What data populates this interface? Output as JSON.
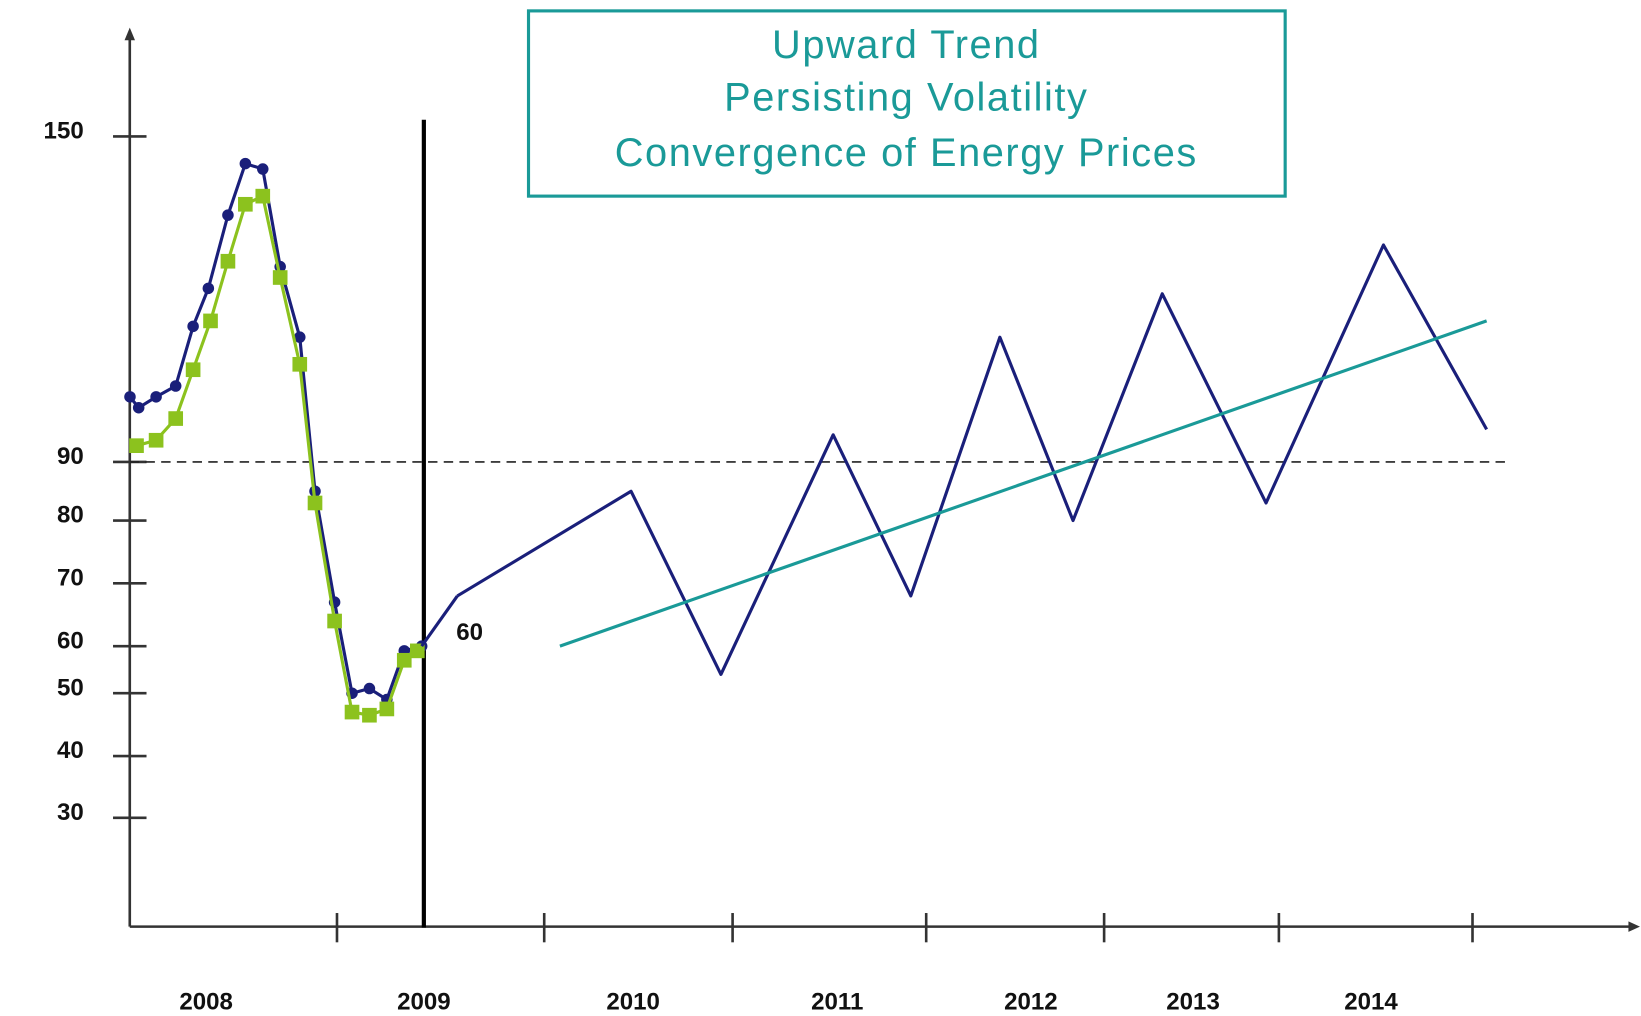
{
  "chart_data": {
    "type": "line",
    "annotation_lines": [
      "Upward Trend",
      "Persisting Volatility",
      "Convergence of Energy Prices"
    ],
    "categories": [
      "2008",
      "2009",
      "2010",
      "2011",
      "2012",
      "2013",
      "2014"
    ],
    "yticks": [
      30,
      40,
      50,
      60,
      70,
      80,
      90,
      150
    ],
    "hline": 90,
    "vline": 2009,
    "point_label": {
      "x": 2008.99,
      "y": 60,
      "label": "60"
    },
    "series": [
      {
        "color": "#1a1f7a",
        "marker": "circle",
        "x": [
          2007.65,
          2007.69,
          2007.77,
          2007.86,
          2007.94,
          2008.01,
          2008.1,
          2008.18,
          2008.26,
          2008.34,
          2008.43,
          2008.5,
          2008.59,
          2008.67,
          2008.75,
          2008.83,
          2008.91,
          2008.99
        ],
        "values": [
          102,
          100,
          102,
          104,
          115,
          122,
          135.5,
          145,
          144,
          126,
          113,
          85,
          67,
          50,
          51,
          49,
          59,
          60
        ]
      },
      {
        "color": "#8cc21e",
        "marker": "square",
        "x": [
          2007.68,
          2007.77,
          2007.86,
          2007.94,
          2008.02,
          2008.1,
          2008.18,
          2008.26,
          2008.34,
          2008.43,
          2008.5,
          2008.59,
          2008.67,
          2008.75,
          2008.83,
          2008.91,
          2008.97
        ],
        "values": [
          93,
          94,
          98,
          107,
          116,
          127,
          137.5,
          139,
          124,
          108,
          83,
          64,
          47,
          46.5,
          47.5,
          57,
          59
        ]
      },
      {
        "color": "#1a1f7a",
        "marker": "none",
        "x": [
          2009.16,
          2009.99,
          2010.43,
          2010.98,
          2011.38,
          2011.84,
          2012.26,
          2012.81,
          2013.41,
          2014.07,
          2014.65
        ],
        "values": [
          68,
          85,
          54,
          95,
          68,
          113,
          80,
          121,
          83,
          130,
          96
        ]
      },
      {
        "color": "#1a9a98",
        "marker": "none",
        "x": [
          2009.65,
          2014.65
        ],
        "values": [
          60,
          116
        ]
      }
    ]
  }
}
